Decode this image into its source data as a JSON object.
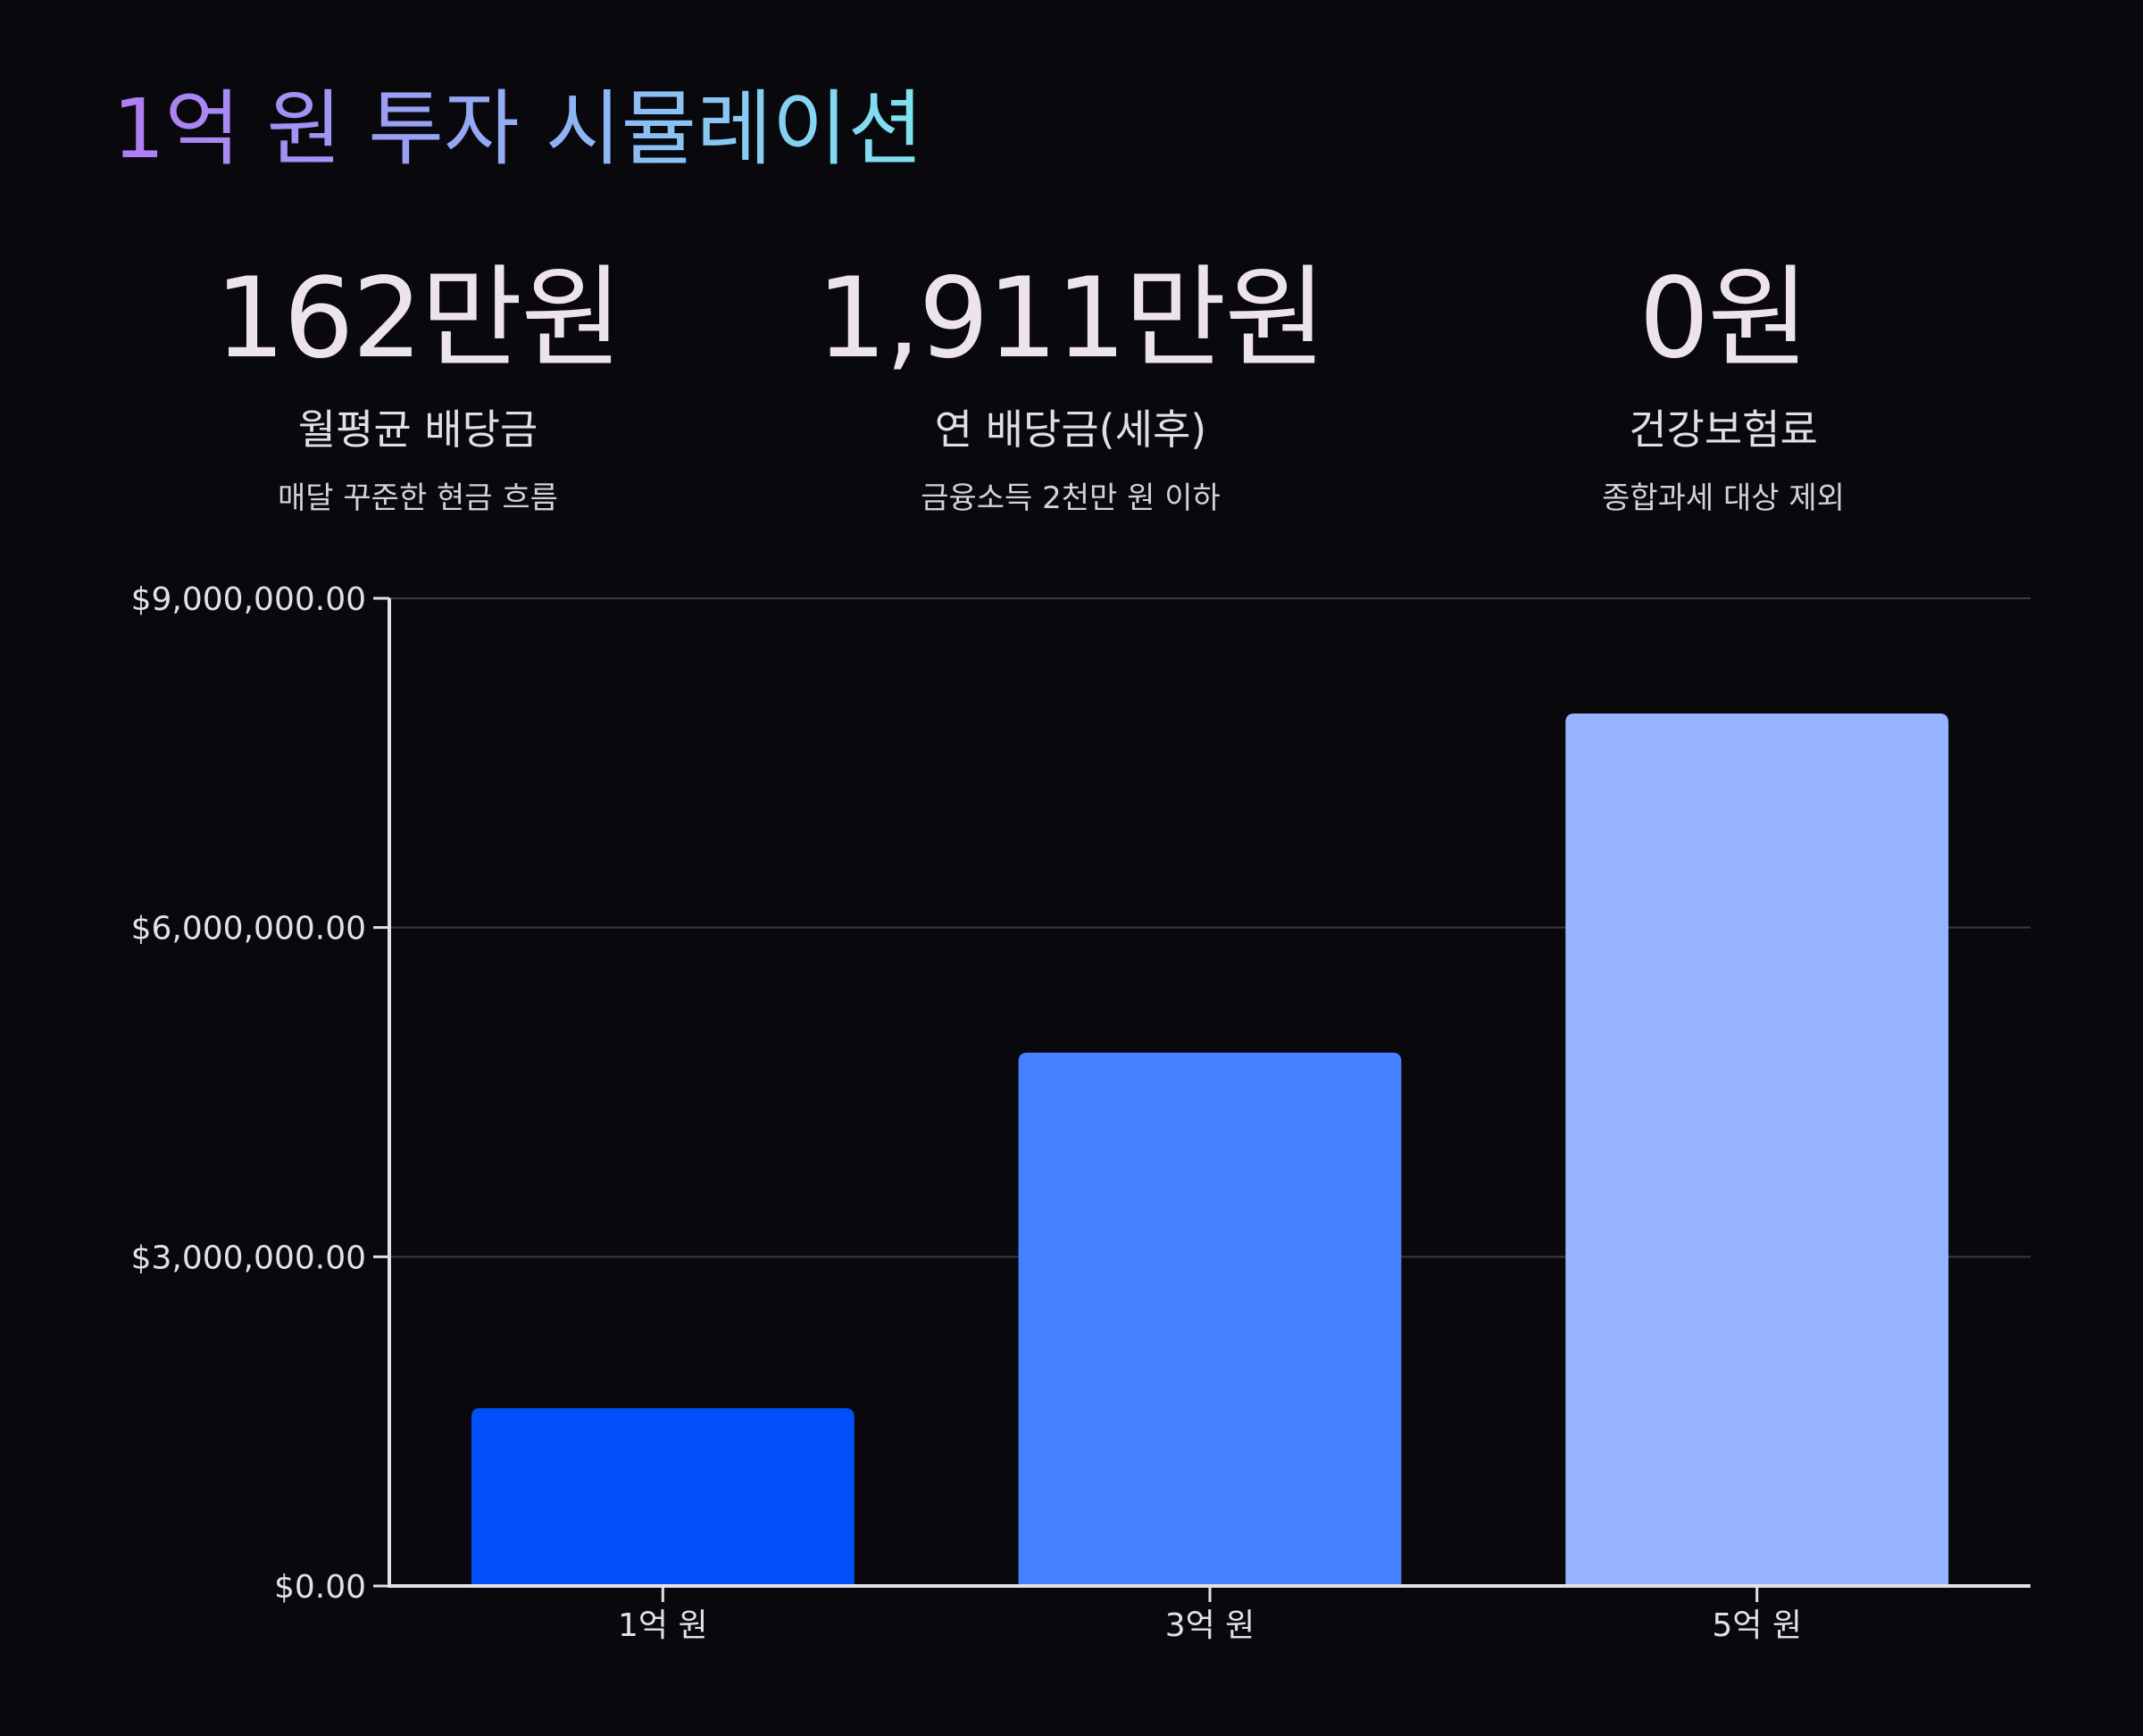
{
  "header": {
    "title": "1억 원 투자 시뮬레이션"
  },
  "stats": [
    {
      "value": "162만원",
      "label": "월평균 배당금",
      "sub": "매달 꾸준한 현금 흐름"
    },
    {
      "value": "1,911만원",
      "label": "연 배당금(세후)",
      "sub": "금융소득 2천만 원 이하"
    },
    {
      "value": "0원",
      "label": "건강보험료",
      "sub": "종합과세 대상 제외"
    }
  ],
  "chart_data": {
    "type": "bar",
    "categories": [
      "1억 원",
      "3억 원",
      "5억 원"
    ],
    "values": [
      1620000,
      4860000,
      7950000
    ],
    "colors": [
      "#004ff9",
      "#4681ff",
      "#96b4ff"
    ],
    "ylim": [
      0,
      9000000
    ],
    "yticks": [
      0,
      3000000,
      6000000,
      9000000
    ],
    "ytick_labels": [
      "$0.00",
      "$3,000,000.00",
      "$6,000,000.00",
      "$9,000,000.00"
    ],
    "grid": true,
    "grid_color": "#3a3a42",
    "axis_color": "#e6e0e6"
  }
}
